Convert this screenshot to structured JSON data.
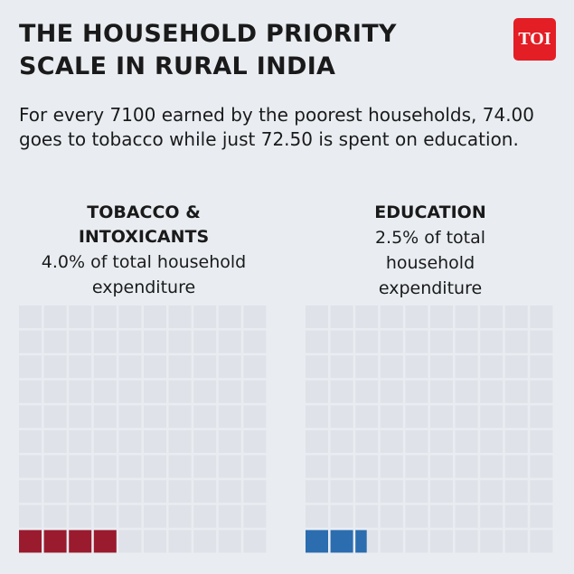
{
  "header": {
    "title": "THE HOUSEHOLD PRIORITY SCALE IN RURAL INDIA",
    "subtitle": "For every 7100 earned by the poorest households, 74.00 goes to tobacco while just 72.50 is spent on education.",
    "logo": "TOI"
  },
  "chart_data": [
    {
      "type": "waffle",
      "title": "TOBACCO & INTOXICANTS",
      "value": 4.0,
      "value_label": "4.0% of total household expenditure",
      "color": "#9a1b2e"
    },
    {
      "type": "waffle",
      "title": "EDUCATION",
      "value": 2.5,
      "value_label": "2.5% of total household expenditure",
      "color": "#2b6daf"
    }
  ]
}
